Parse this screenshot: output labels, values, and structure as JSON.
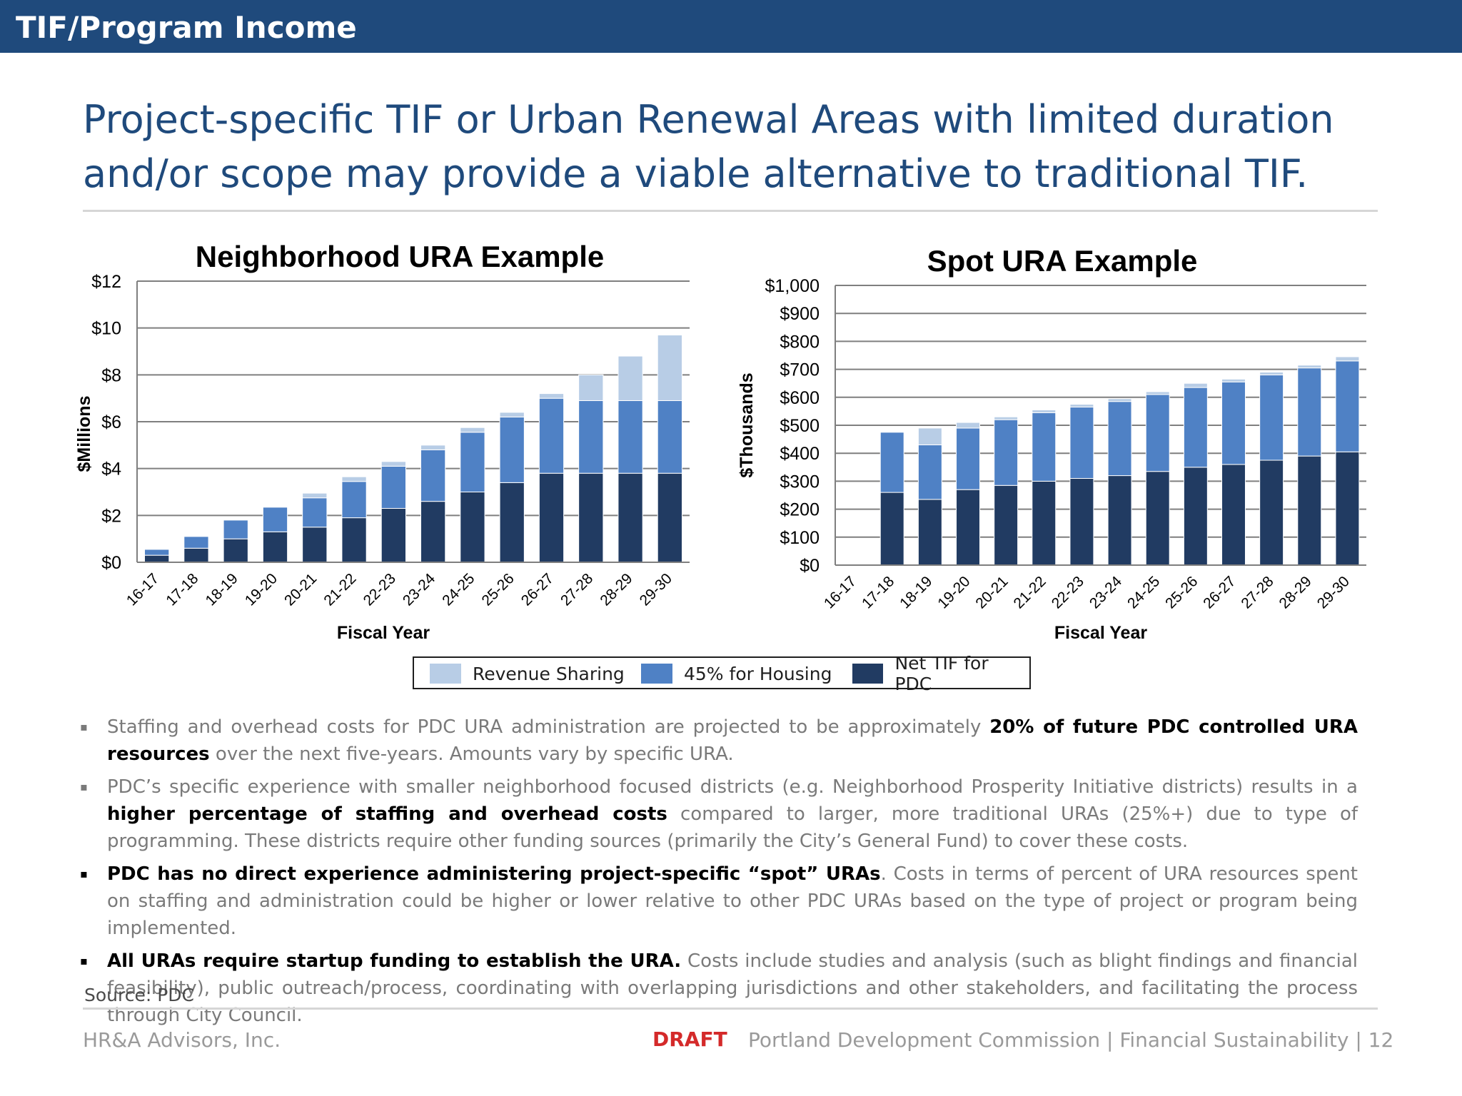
{
  "header": {
    "title": "TIF/Program Income"
  },
  "headline": "Project-specific TIF or Urban Renewal Areas with limited duration and/or scope may provide a viable alternative to traditional TIF.",
  "colors": {
    "revenue_sharing": "#b8cde6",
    "housing": "#4f81c5",
    "net_tif": "#213b62",
    "header_bg": "#1f4a7c",
    "draft": "#d42a2a"
  },
  "chart_data": [
    {
      "type": "bar",
      "stacked": true,
      "title": "Neighborhood URA Example",
      "xlabel": "Fiscal Year",
      "ylabel": "$Millions",
      "ylim": [
        0,
        12
      ],
      "yticks": [
        "$0",
        "$2",
        "$4",
        "$6",
        "$8",
        "$10",
        "$12"
      ],
      "grid": true,
      "categories": [
        "16-17",
        "17-18",
        "18-19",
        "19-20",
        "20-21",
        "21-22",
        "22-23",
        "23-24",
        "24-25",
        "25-26",
        "26-27",
        "27-28",
        "28-29",
        "29-30"
      ],
      "series": [
        {
          "name": "Net TIF for PDC",
          "color": "#213b62",
          "values": [
            0.3,
            0.6,
            1.0,
            1.3,
            1.5,
            1.9,
            2.3,
            2.6,
            3.0,
            3.4,
            3.8,
            3.8,
            3.8,
            3.8
          ]
        },
        {
          "name": "45% for Housing",
          "color": "#4f81c5",
          "values": [
            0.25,
            0.5,
            0.8,
            1.05,
            1.25,
            1.55,
            1.8,
            2.2,
            2.55,
            2.8,
            3.2,
            3.1,
            3.1,
            3.1
          ]
        },
        {
          "name": "Revenue Sharing",
          "color": "#b8cde6",
          "values": [
            0,
            0,
            0,
            0,
            0.2,
            0.2,
            0.2,
            0.2,
            0.2,
            0.2,
            0.2,
            1.1,
            1.9,
            2.8
          ]
        }
      ]
    },
    {
      "type": "bar",
      "stacked": true,
      "title": "Spot URA Example",
      "xlabel": "Fiscal Year",
      "ylabel": "$Thousands",
      "ylim": [
        0,
        1000
      ],
      "yticks": [
        "$0",
        "$100",
        "$200",
        "$300",
        "$400",
        "$500",
        "$600",
        "$700",
        "$800",
        "$900",
        "$1,000"
      ],
      "grid": true,
      "categories": [
        "16-17",
        "17-18",
        "18-19",
        "19-20",
        "20-21",
        "21-22",
        "22-23",
        "23-24",
        "24-25",
        "25-26",
        "26-27",
        "27-28",
        "28-29",
        "29-30"
      ],
      "series": [
        {
          "name": "Net TIF for PDC",
          "color": "#213b62",
          "values": [
            0,
            260,
            235,
            270,
            285,
            300,
            310,
            320,
            335,
            350,
            360,
            375,
            390,
            405
          ]
        },
        {
          "name": "45% for Housing",
          "color": "#4f81c5",
          "values": [
            0,
            215,
            195,
            220,
            235,
            245,
            255,
            265,
            275,
            285,
            295,
            305,
            315,
            325
          ]
        },
        {
          "name": "Revenue Sharing",
          "color": "#b8cde6",
          "values": [
            0,
            0,
            60,
            20,
            10,
            10,
            10,
            10,
            10,
            15,
            10,
            10,
            10,
            15
          ]
        }
      ]
    }
  ],
  "legend": [
    {
      "label": "Revenue Sharing",
      "color": "#b8cde6"
    },
    {
      "label": "45% for Housing",
      "color": "#4f81c5"
    },
    {
      "label": "Net TIF for PDC",
      "color": "#213b62"
    }
  ],
  "bullets": [
    {
      "marker": "▪",
      "pre": "Staffing and overhead costs for PDC URA administration are projected to be approximately ",
      "bold": "20% of future PDC controlled URA resources",
      "post": " over the next five-years. Amounts vary by specific URA."
    },
    {
      "marker": "▪",
      "pre": "PDC’s specific experience with smaller neighborhood focused districts (e.g. Neighborhood Prosperity Initiative districts) results in a ",
      "bold": "higher percentage of staffing and overhead costs",
      "post": " compared to larger, more traditional URAs (25%+) due to type of programming. These districts require other funding sources (primarily the City’s General Fund) to cover these costs."
    },
    {
      "marker": "▪",
      "pre": "",
      "bold": "PDC has no direct experience administering project-specific “spot” URAs",
      "post": ". Costs in terms of percent of URA resources spent on staffing and administration could be higher or lower relative to other PDC URAs based on the type of project or program being implemented."
    },
    {
      "marker": "▪",
      "pre": "",
      "bold": "All URAs require startup funding to establish the URA.",
      "post": " Costs include studies and analysis (such as blight findings and financial feasibility), public outreach/process, coordinating with overlapping jurisdictions and other stakeholders, and facilitating the process through City Council."
    }
  ],
  "source": "Source: PDC",
  "footer": {
    "left": "HR&A Advisors, Inc.",
    "draft": "DRAFT",
    "right": "Portland Development Commission | Financial Sustainability | 12"
  }
}
